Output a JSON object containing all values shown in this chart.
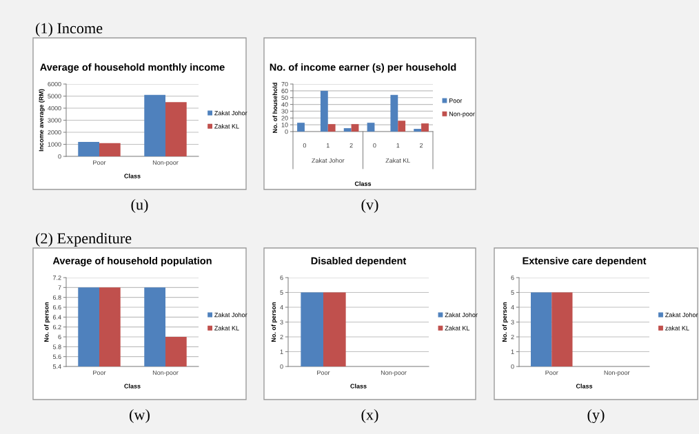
{
  "chart_data": [
    {
      "type": "bar",
      "title": "Average of household monthly income",
      "xlabel": "Class",
      "ylabel": "Income average (RM)",
      "categories": [
        "Poor",
        "Non-poor"
      ],
      "series": [
        {
          "name": "Zakat Johor",
          "color": "#4f81bd",
          "values": [
            1200,
            5100
          ]
        },
        {
          "name": "Zakat KL",
          "color": "#c0504d",
          "values": [
            1100,
            4500
          ]
        }
      ],
      "ylim": [
        0,
        6000
      ],
      "yticks": [
        0,
        1000,
        2000,
        3000,
        4000,
        5000,
        6000
      ],
      "grid": "y",
      "legend": "right",
      "annotations": [
        "(u)",
        "(1) Income"
      ]
    },
    {
      "type": "bar",
      "title": "No. of income earner (s) per household",
      "xlabel": "Class",
      "ylabel": "No. of household",
      "categories": [
        "0",
        "1",
        "2",
        "0",
        "1",
        "2"
      ],
      "series": [
        {
          "name": "Poor",
          "color": "#4f81bd",
          "values": [
            13,
            60,
            5,
            13,
            54,
            4
          ]
        },
        {
          "name": "Non-poor",
          "color": "#c0504d",
          "values": [
            0,
            11,
            11,
            0,
            16,
            12
          ]
        }
      ],
      "ylim": [
        0,
        70
      ],
      "yticks": [
        0,
        10,
        20,
        30,
        40,
        50,
        60,
        70
      ],
      "grid": "y",
      "legend": "right",
      "annotations": [
        "(v)",
        "Zakat Johor",
        "Zakat KL"
      ]
    },
    {
      "type": "bar",
      "title": "Average of household population",
      "xlabel": "Class",
      "ylabel": "No. of person",
      "categories": [
        "Poor",
        "Non-poor"
      ],
      "series": [
        {
          "name": "Zakat Johor",
          "color": "#4f81bd",
          "values": [
            7,
            7
          ]
        },
        {
          "name": "Zakat KL",
          "color": "#c0504d",
          "values": [
            7,
            6
          ]
        }
      ],
      "ylim": [
        5.4,
        7.2
      ],
      "yticks": [
        5.4,
        5.6,
        5.8,
        6,
        6.2,
        6.4,
        6.6,
        6.8,
        7,
        7.2
      ],
      "grid": "y",
      "legend": "right",
      "annotations": [
        "(w)",
        "(2) Expenditure"
      ]
    },
    {
      "type": "bar",
      "title": "Disabled dependent",
      "xlabel": "Class",
      "ylabel": "No. of person",
      "categories": [
        "Poor",
        "Non-poor"
      ],
      "series": [
        {
          "name": "Zakat Johor",
          "color": "#4f81bd",
          "values": [
            5,
            0
          ]
        },
        {
          "name": "Zakat KL",
          "color": "#c0504d",
          "values": [
            5,
            0
          ]
        }
      ],
      "ylim": [
        0,
        6
      ],
      "yticks": [
        0,
        1,
        2,
        3,
        4,
        5,
        6
      ],
      "grid": "y",
      "legend": "right",
      "annotations": [
        "(x)"
      ]
    },
    {
      "type": "bar",
      "title": "Extensive care dependent",
      "xlabel": "Class",
      "ylabel": "No. of person",
      "categories": [
        "Poor",
        "Non-poor"
      ],
      "series": [
        {
          "name": "Zakat Johor",
          "color": "#4f81bd",
          "values": [
            5,
            0
          ]
        },
        {
          "name": "zakat KL",
          "color": "#c0504d",
          "values": [
            5,
            0
          ]
        }
      ],
      "ylim": [
        0,
        6
      ],
      "yticks": [
        0,
        1,
        2,
        3,
        4,
        5,
        6
      ],
      "grid": "y",
      "legend": "right",
      "annotations": [
        "(y)"
      ]
    }
  ]
}
